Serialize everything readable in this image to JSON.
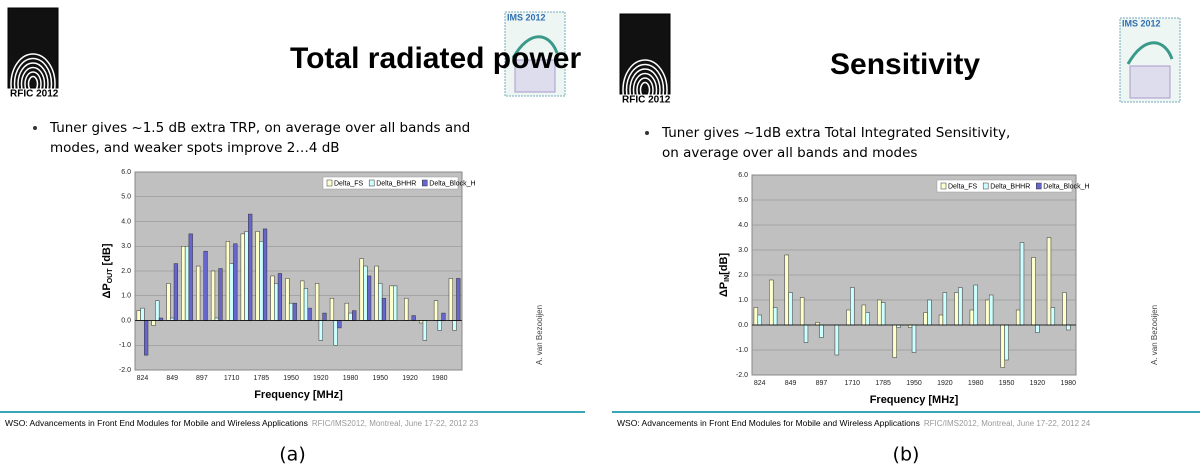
{
  "slides": [
    {
      "title": "Total radiated power",
      "logo_text": "RFIC 2012",
      "badge": "IMS 2012",
      "bullet": [
        "Tuner gives ~1.5 dB extra TRP, on average over all bands and",
        "modes, and weaker spots improve 2…4 dB"
      ],
      "author": "A. van Bezooijen",
      "footer": "WSO: Advancements in Front End Modules for Mobile and Wireless Applications",
      "footer_note": "RFIC/IMS2012, Montreal, June 17-22, 2012 23",
      "caption": "(a)"
    },
    {
      "title": "Sensitivity",
      "logo_text": "RFIC 2012",
      "badge": "IMS 2012",
      "bullet": [
        "Tuner gives ~1dB extra Total Integrated Sensitivity,",
        "on average over all bands and modes"
      ],
      "author": "A. van Bezooijen",
      "footer": "WSO: Advancements in Front End Modules for Mobile and Wireless Applications",
      "footer_note": "RFIC/IMS2012, Montreal, June 17-22, 2012 24",
      "caption": "(b)"
    }
  ],
  "chart_data": [
    {
      "type": "bar",
      "xlabel": "Frequency [MHz]",
      "ylabel": "ΔP",
      "ylabel_sub": "OUT",
      "ylabel_unit": " [dB]",
      "categories": [
        "824",
        null,
        "849",
        null,
        "897",
        null,
        "1710",
        null,
        "1785",
        null,
        "1950",
        null,
        "1920",
        null,
        "1980",
        null,
        "1950",
        null,
        "1920",
        null,
        "1980",
        null
      ],
      "series": [
        {
          "name": "Delta_FS",
          "color": "#ffffcc",
          "values": [
            0.4,
            -0.2,
            1.5,
            3.0,
            2.2,
            2.0,
            3.2,
            3.5,
            3.6,
            1.8,
            1.7,
            1.6,
            1.5,
            0.9,
            0.7,
            2.5,
            2.2,
            1.4,
            0.9,
            -0.1,
            0.8,
            1.7
          ]
        },
        {
          "name": "Delta_BHHR",
          "color": "#ccffff",
          "values": [
            0.5,
            0.8,
            0.1,
            3.0,
            0.0,
            0.1,
            2.3,
            3.6,
            3.2,
            1.5,
            0.7,
            1.3,
            -0.8,
            -1.0,
            0.3,
            2.2,
            1.5,
            1.4,
            0.0,
            -0.8,
            -0.4,
            -0.4
          ]
        },
        {
          "name": "Delta_Block_H",
          "color": "#6666cc",
          "values": [
            -1.4,
            0.1,
            2.3,
            3.5,
            2.8,
            2.1,
            3.1,
            4.3,
            3.7,
            1.9,
            0.7,
            0.5,
            0.3,
            -0.3,
            0.4,
            1.8,
            0.9,
            0.0,
            0.2,
            0.0,
            0.3,
            1.7
          ]
        }
      ],
      "ylim": [
        -2,
        6
      ],
      "yticks": [
        {
          "value": -2,
          "label": "-2.0"
        },
        {
          "value": -1,
          "label": "-1.0"
        },
        {
          "value": 0,
          "label": "0.0"
        },
        {
          "value": 1,
          "label": "1.0"
        },
        {
          "value": 2,
          "label": "2.0"
        },
        {
          "value": 3,
          "label": "3.0"
        },
        {
          "value": 4,
          "label": "4.0"
        },
        {
          "value": 5,
          "label": "5.0"
        },
        {
          "value": 6,
          "label": "6.0"
        }
      ],
      "grid": true,
      "legend": "top-right"
    },
    {
      "type": "bar",
      "xlabel": "Frequency [MHz]",
      "ylabel": "ΔP",
      "ylabel_sub": "IN",
      "ylabel_unit": "[dB]",
      "categories": [
        "824",
        null,
        "849",
        null,
        "897",
        null,
        "1710",
        null,
        "1785",
        null,
        "1950",
        null,
        "1920",
        null,
        "1980",
        null,
        "1950",
        null,
        "1920",
        null,
        "1980"
      ],
      "series": [
        {
          "name": "Delta_FS",
          "color": "#ffffcc",
          "values": [
            0.7,
            1.8,
            2.8,
            1.1,
            0.1,
            0.0,
            0.6,
            0.8,
            1.0,
            -1.3,
            -0.1,
            0.5,
            0.4,
            1.3,
            0.6,
            1.0,
            -1.7,
            0.6,
            2.7,
            3.5,
            1.3
          ]
        },
        {
          "name": "Delta_BHHR",
          "color": "#ccffff",
          "values": [
            0.4,
            0.7,
            1.3,
            -0.7,
            -0.5,
            -1.2,
            1.5,
            0.5,
            0.9,
            -0.1,
            -1.1,
            1.0,
            1.3,
            1.5,
            1.6,
            1.2,
            -1.4,
            3.3,
            -0.3,
            0.7,
            -0.2
          ]
        },
        {
          "name": "Delta_Block_H",
          "color": "#6666cc",
          "values": [
            0,
            0,
            0,
            0,
            0,
            0,
            0,
            0,
            0,
            0,
            0,
            0,
            0,
            0,
            0,
            0,
            0,
            0,
            0,
            0,
            0
          ]
        }
      ],
      "ylim": [
        -2,
        6
      ],
      "yticks": [
        {
          "value": -2,
          "label": "-2.0"
        },
        {
          "value": -1,
          "label": "-1.0"
        },
        {
          "value": 0,
          "label": "0.0"
        },
        {
          "value": 1,
          "label": "1.0"
        },
        {
          "value": 2,
          "label": "2.0"
        },
        {
          "value": 3,
          "label": "3.0"
        },
        {
          "value": 4,
          "label": "4.0"
        },
        {
          "value": 5,
          "label": "5.0"
        },
        {
          "value": 6,
          "label": "6.0"
        }
      ],
      "grid": true,
      "legend": "top-right"
    }
  ]
}
